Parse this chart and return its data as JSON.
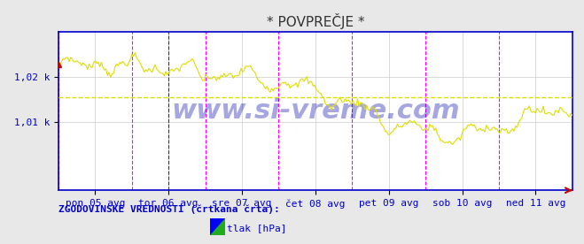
{
  "title": "* POVPREČJE *",
  "title_color": "#333333",
  "bg_color": "#e8e8e8",
  "plot_bg_color": "#ffffff",
  "line_color": "#dddd00",
  "hline_color": "#dddd00",
  "vline_colors": [
    "#ff00ff",
    "#000000"
  ],
  "border_color": "#0000cc",
  "axis_label_color": "#0000cc",
  "watermark": "www.si-vreme.com",
  "watermark_color": "#0000aa",
  "ylabel_ticks": [
    "1,01 k",
    "1,02 k"
  ],
  "ytick_values": [
    1010,
    1020
  ],
  "ylim": [
    995,
    1030
  ],
  "xlabel_ticks": [
    "pon 05 avg",
    "tor 06 avg",
    "sre 07 avg",
    "čet 08 avg",
    "pet 09 avg",
    "sob 10 avg",
    "ned 11 avg"
  ],
  "n_points": 336,
  "hline_y": 1015.5,
  "legend_text": "ZGODOVINSKE VREDNOSTI (črtkana črta):",
  "legend_item": "tlak [hPa]",
  "legend_item_color1": "#ffff00",
  "legend_item_color2": "#0000ff",
  "legend_item_color3": "#22aa22",
  "bottom_text_color": "#0000cc",
  "grid_color": "#cccccc",
  "spine_color": "#0000cc",
  "right_arrow_color": "#cc0000",
  "top_left_dot_color": "#cc0000"
}
